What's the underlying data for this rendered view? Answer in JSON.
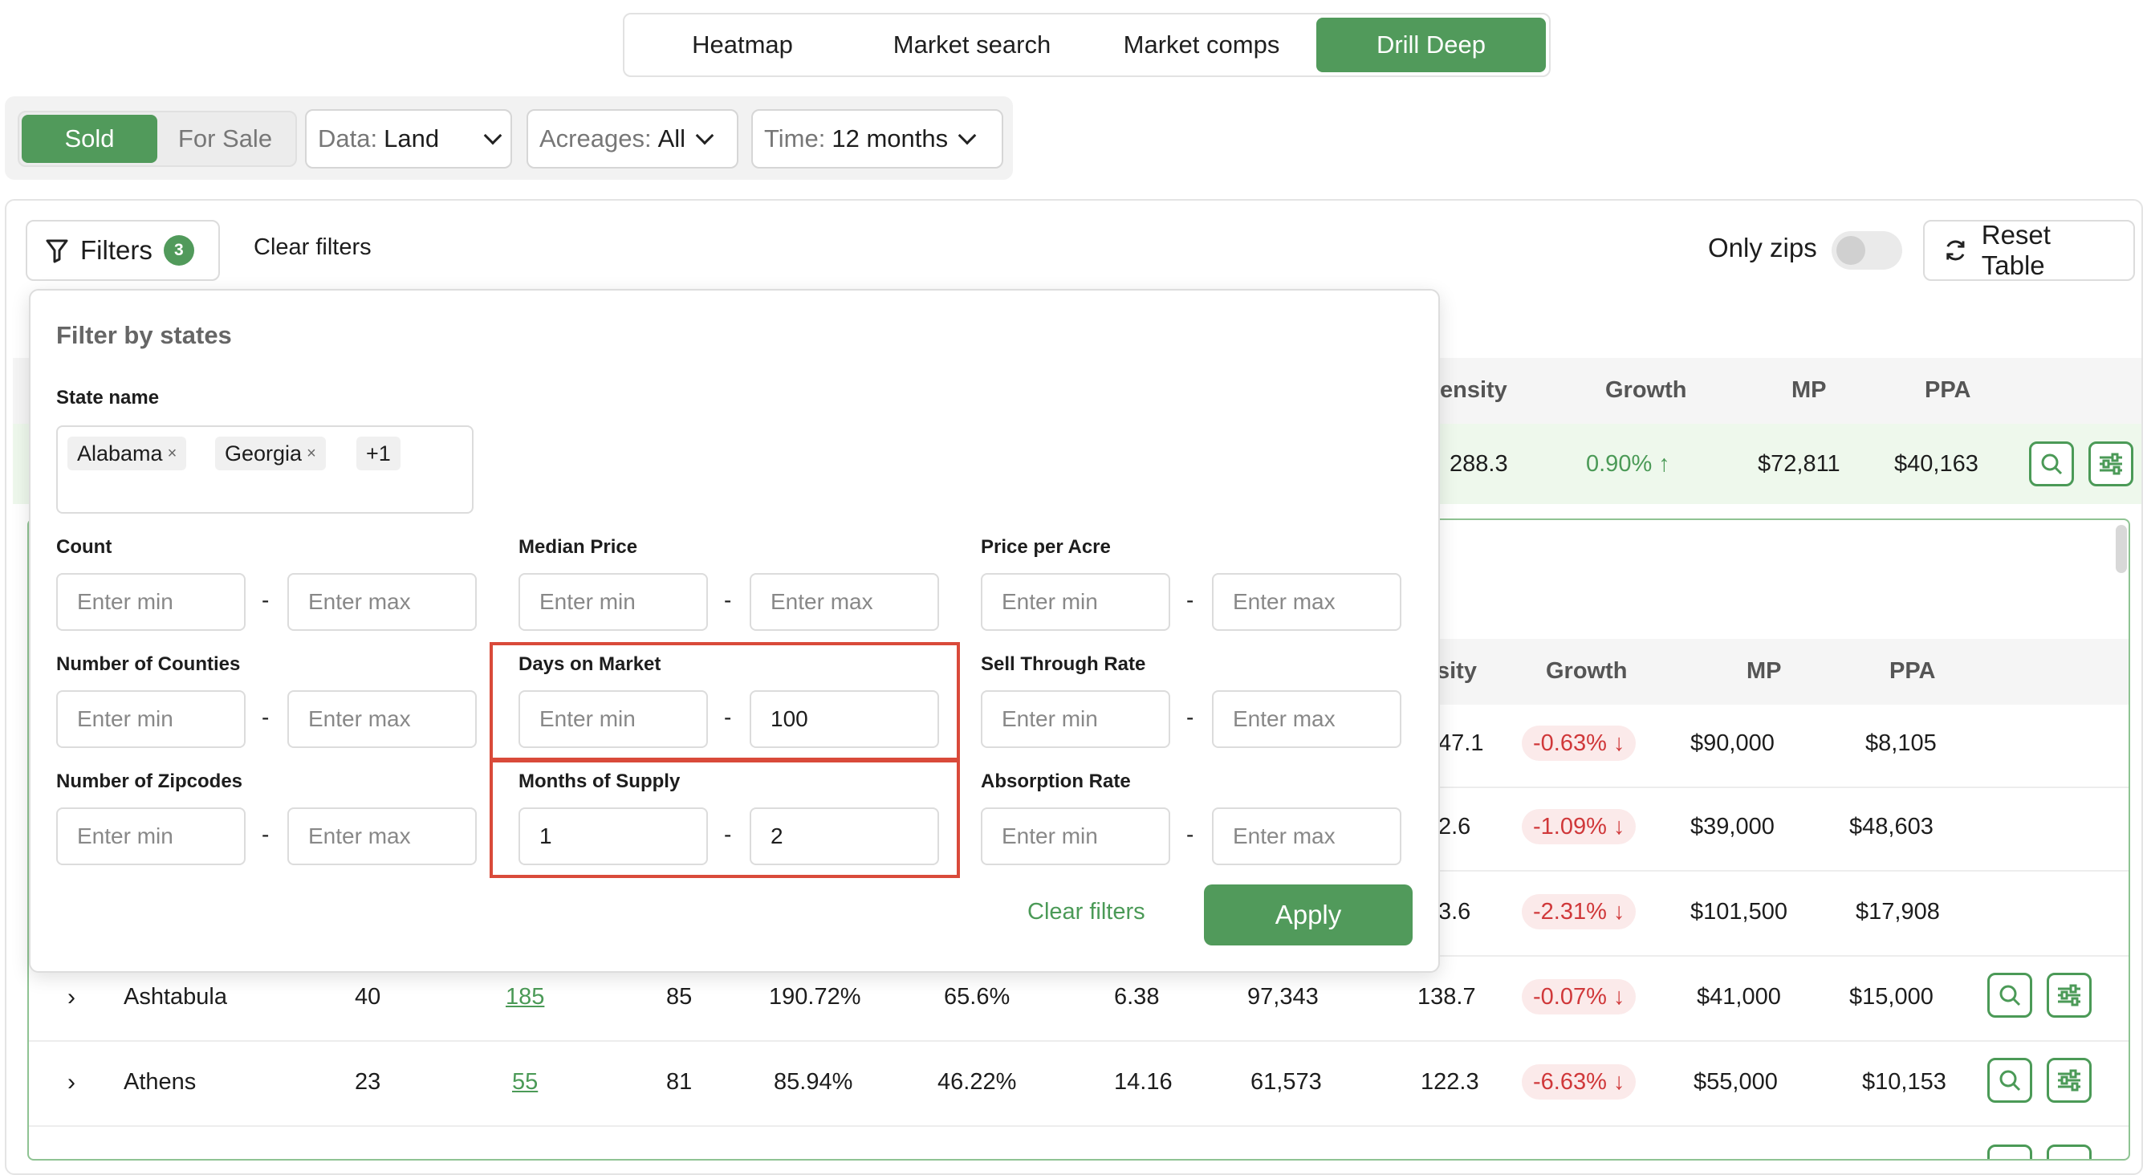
{
  "top_tabs": [
    "Heatmap",
    "Market search",
    "Market comps",
    "Drill Deep"
  ],
  "toolbar": {
    "sold": "Sold",
    "for_sale": "For Sale",
    "data_label": "Data:",
    "data_value": "Land",
    "acreages_label": "Acreages:",
    "acreages_value": "All",
    "time_label": "Time:",
    "time_value": "12 months"
  },
  "filters_button": {
    "label": "Filters",
    "count": "3"
  },
  "clear_filters": "Clear filters",
  "only_zips": "Only zips",
  "reset_table": "Reset Table",
  "table": {
    "headers_top": [
      "ensity",
      "Growth",
      "MP",
      "PPA"
    ],
    "summary": {
      "density": "288.3",
      "growth": "0.90% ↑",
      "mp": "$72,811",
      "ppa": "$40,163"
    },
    "headers_inner": [
      "sity",
      "Growth",
      "MP",
      "PPA"
    ],
    "partial_rows": [
      {
        "density": "47.1",
        "growth": "-0.63% ↓",
        "mp": "$90,000",
        "ppa": "$8,105"
      },
      {
        "density": "2.6",
        "growth": "-1.09% ↓",
        "mp": "$39,000",
        "ppa": "$48,603"
      },
      {
        "density": "3.6",
        "growth": "-2.31% ↓",
        "mp": "$101,500",
        "ppa": "$17,908"
      }
    ],
    "rows": [
      {
        "name": "Ashtabula",
        "count": "40",
        "zips": "185",
        "dom": "85",
        "str": "190.72%",
        "ar": "65.6%",
        "mos": "6.38",
        "pop": "97,343",
        "density": "138.7",
        "growth": "-0.07% ↓",
        "mp": "$41,000",
        "ppa": "$15,000"
      },
      {
        "name": "Athens",
        "count": "23",
        "zips": "55",
        "dom": "81",
        "str": "85.94%",
        "ar": "46.22%",
        "mos": "14.16",
        "pop": "61,573",
        "density": "122.3",
        "growth": "-6.63% ↓",
        "mp": "$55,000",
        "ppa": "$10,153"
      }
    ]
  },
  "popover": {
    "title": "Filter by states",
    "state_label": "State name",
    "chips": [
      "Alabama",
      "Georgia",
      "+1"
    ],
    "fields": {
      "count": "Count",
      "median_price": "Median Price",
      "price_per_acre": "Price per Acre",
      "num_counties": "Number of Counties",
      "days_on_market": "Days on Market",
      "sell_through": "Sell Through Rate",
      "num_zipcodes": "Number of Zipcodes",
      "months_supply": "Months of Supply",
      "absorption": "Absorption Rate"
    },
    "placeholders": {
      "min": "Enter min",
      "max": "Enter max"
    },
    "values": {
      "dom_max": "100",
      "mos_min": "1",
      "mos_max": "2"
    },
    "dash": "-",
    "clear": "Clear filters",
    "apply": "Apply"
  },
  "colors": {
    "accent": "#519a5b",
    "negative": "#d0383a",
    "highlight": "#d94a3a"
  }
}
